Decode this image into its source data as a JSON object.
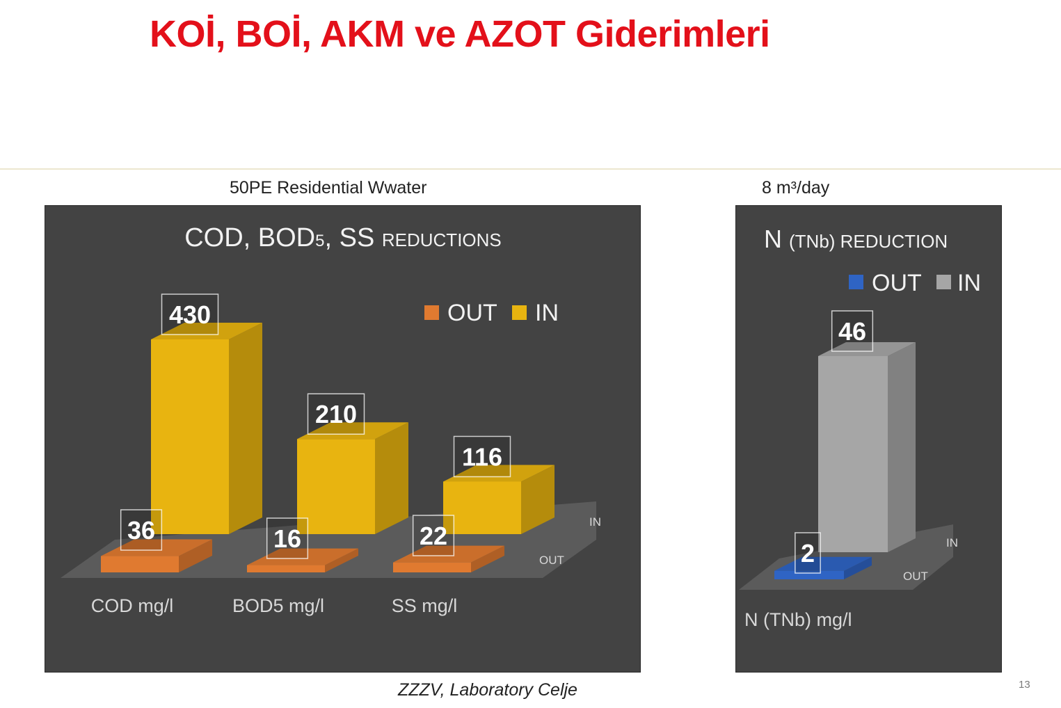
{
  "slide": {
    "title": "KOİ, BOİ, AKM ve AZOT Giderimleri",
    "subtitle_left": "50PE Residential Wwater",
    "subtitle_right": "8 m³/day",
    "source": "ZZZV, Laboratory Celje",
    "page_number": "13"
  },
  "colors": {
    "title": "#e3101a",
    "panel_bg": "#434343",
    "in_cod": "#e8b410",
    "out_cod": "#e07a30",
    "in_n": "#a6a6a6",
    "out_n": "#2f64c4"
  },
  "chart_data": [
    {
      "type": "bar",
      "title_main": "COD, BOD",
      "title_sub": "5",
      "title_rest": ", SS ",
      "title_small": "REDUCTIONS",
      "categories": [
        "COD mg/l",
        "BOD5 mg/l",
        "SS mg/l"
      ],
      "series": [
        {
          "name": "OUT",
          "values": [
            36,
            16,
            22
          ]
        },
        {
          "name": "IN",
          "values": [
            430,
            210,
            116
          ]
        }
      ],
      "depth_labels": [
        "IN",
        "OUT"
      ],
      "legend": [
        "OUT",
        "IN"
      ],
      "legend_position": "top-right",
      "three_d": true,
      "grid": false
    },
    {
      "type": "bar",
      "title_main": "N ",
      "title_small": "(TNb) REDUCTION",
      "categories": [
        "N (TNb) mg/l"
      ],
      "series": [
        {
          "name": "OUT",
          "values": [
            2
          ]
        },
        {
          "name": "IN",
          "values": [
            46
          ]
        }
      ],
      "depth_labels": [
        "IN",
        "OUT"
      ],
      "legend": [
        "OUT",
        "IN"
      ],
      "legend_position": "top-right",
      "three_d": true,
      "grid": false
    }
  ]
}
